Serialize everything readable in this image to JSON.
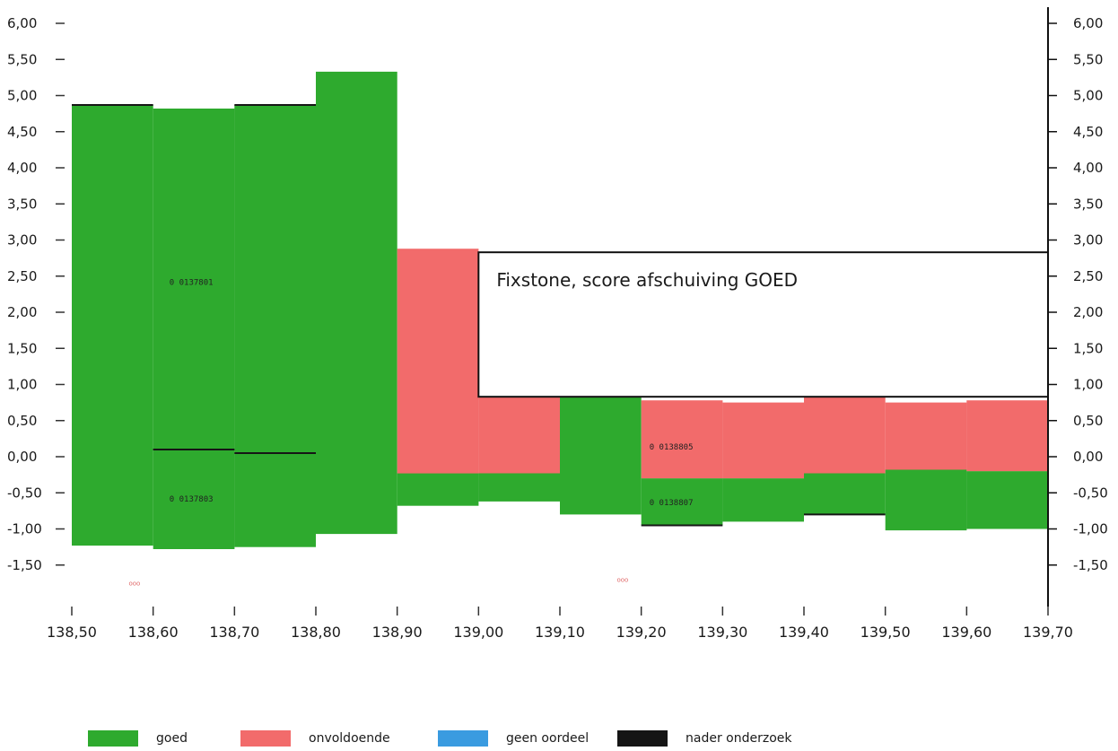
{
  "chart_data": {
    "type": "bar",
    "xlim": [
      138.5,
      139.7
    ],
    "ylim": [
      -1.5,
      6.0
    ],
    "x_ticks": [
      "138,50",
      "138,60",
      "138,70",
      "138,80",
      "138,90",
      "139,00",
      "139,10",
      "139,20",
      "139,30",
      "139,40",
      "139,50",
      "139,60",
      "139,70"
    ],
    "y_ticks_left": [
      "6,00",
      "5,50",
      "5,00",
      "4,50",
      "4,00",
      "3,50",
      "3,00",
      "2,50",
      "2,00",
      "1,50",
      "1,00",
      "0,50",
      "0,00",
      "-0,50",
      "-1,00",
      "-1,50"
    ],
    "y_ticks_right": [
      "6,00",
      "5,50",
      "5,00",
      "4,50",
      "4,00",
      "3,50",
      "3,00",
      "2,50",
      "2,00",
      "1,50",
      "1,00",
      "0,50",
      "0,00",
      "-0,50",
      "-1,00",
      "-1,50"
    ],
    "colors": {
      "goed": "#2eaa2e",
      "onvoldoende": "#f26b6b",
      "geen_oordeel": "#3a9be0",
      "nader_onderzoek": "#151515"
    },
    "segments": [
      {
        "x0": 138.5,
        "x1": 138.6,
        "y0": -1.23,
        "y1": 4.87,
        "class": "goed"
      },
      {
        "x0": 138.6,
        "x1": 138.7,
        "y0": -1.28,
        "y1": 4.82,
        "class": "goed"
      },
      {
        "x0": 138.7,
        "x1": 138.8,
        "y0": -1.25,
        "y1": 4.87,
        "class": "goed"
      },
      {
        "x0": 138.8,
        "x1": 138.9,
        "y0": -1.07,
        "y1": 5.33,
        "class": "goed"
      },
      {
        "x0": 138.9,
        "x1": 139.0,
        "y0": -0.68,
        "y1": -0.23,
        "class": "goed"
      },
      {
        "x0": 138.9,
        "x1": 139.0,
        "y0": -0.23,
        "y1": 2.88,
        "class": "onvoldoende"
      },
      {
        "x0": 139.0,
        "x1": 139.1,
        "y0": -0.62,
        "y1": -0.23,
        "class": "goed"
      },
      {
        "x0": 139.0,
        "x1": 139.1,
        "y0": -0.23,
        "y1": 0.83,
        "class": "onvoldoende"
      },
      {
        "x0": 139.1,
        "x1": 139.2,
        "y0": -0.8,
        "y1": 0.83,
        "class": "goed"
      },
      {
        "x0": 139.2,
        "x1": 139.3,
        "y0": -0.95,
        "y1": -0.3,
        "class": "goed"
      },
      {
        "x0": 139.2,
        "x1": 139.3,
        "y0": -0.3,
        "y1": 0.78,
        "class": "onvoldoende"
      },
      {
        "x0": 139.3,
        "x1": 139.4,
        "y0": -0.9,
        "y1": -0.3,
        "class": "goed"
      },
      {
        "x0": 139.3,
        "x1": 139.4,
        "y0": -0.3,
        "y1": 0.75,
        "class": "onvoldoende"
      },
      {
        "x0": 139.4,
        "x1": 139.5,
        "y0": -0.8,
        "y1": -0.23,
        "class": "goed"
      },
      {
        "x0": 139.4,
        "x1": 139.5,
        "y0": -0.23,
        "y1": 0.85,
        "class": "onvoldoende"
      },
      {
        "x0": 139.5,
        "x1": 139.6,
        "y0": -1.02,
        "y1": -0.18,
        "class": "goed"
      },
      {
        "x0": 139.5,
        "x1": 139.6,
        "y0": -0.18,
        "y1": 0.75,
        "class": "onvoldoende"
      },
      {
        "x0": 139.6,
        "x1": 139.7,
        "y0": -1.0,
        "y1": -0.2,
        "class": "goed"
      },
      {
        "x0": 139.6,
        "x1": 139.7,
        "y0": -0.2,
        "y1": 0.78,
        "class": "onvoldoende"
      }
    ],
    "dark_lines": [
      {
        "x0": 138.5,
        "x1": 138.6,
        "y": 4.87
      },
      {
        "x0": 138.7,
        "x1": 138.8,
        "y": 4.87
      },
      {
        "x0": 138.6,
        "x1": 138.7,
        "y": 0.1
      },
      {
        "x0": 138.7,
        "x1": 138.8,
        "y": 0.05
      },
      {
        "x0": 139.2,
        "x1": 139.3,
        "y": -0.95
      },
      {
        "x0": 139.4,
        "x1": 139.5,
        "y": -0.8
      }
    ],
    "segment_labels": [
      {
        "text": "0 0137801",
        "x": 138.62,
        "y": 2.38
      },
      {
        "text": "0 0137803",
        "x": 138.62,
        "y": -0.62
      },
      {
        "text": "0 0138805",
        "x": 139.21,
        "y": 0.1
      },
      {
        "text": "0 0138807",
        "x": 139.21,
        "y": -0.67
      }
    ],
    "small_marks": [
      {
        "text": "ooo",
        "x": 138.57,
        "y": -1.78
      },
      {
        "text": "ooo",
        "x": 139.17,
        "y": -1.73
      }
    ],
    "annotation": {
      "text": "Fixstone, score afschuiving GOED",
      "x0": 139.0,
      "x1": 139.7,
      "y0": 0.83,
      "y1": 2.83
    }
  },
  "legend": [
    {
      "label": "goed",
      "color": "#2eaa2e"
    },
    {
      "label": "onvoldoende",
      "color": "#f26b6b"
    },
    {
      "label": "geen oordeel",
      "color": "#3a9be0"
    },
    {
      "label": "nader onderzoek",
      "color": "#151515"
    }
  ]
}
